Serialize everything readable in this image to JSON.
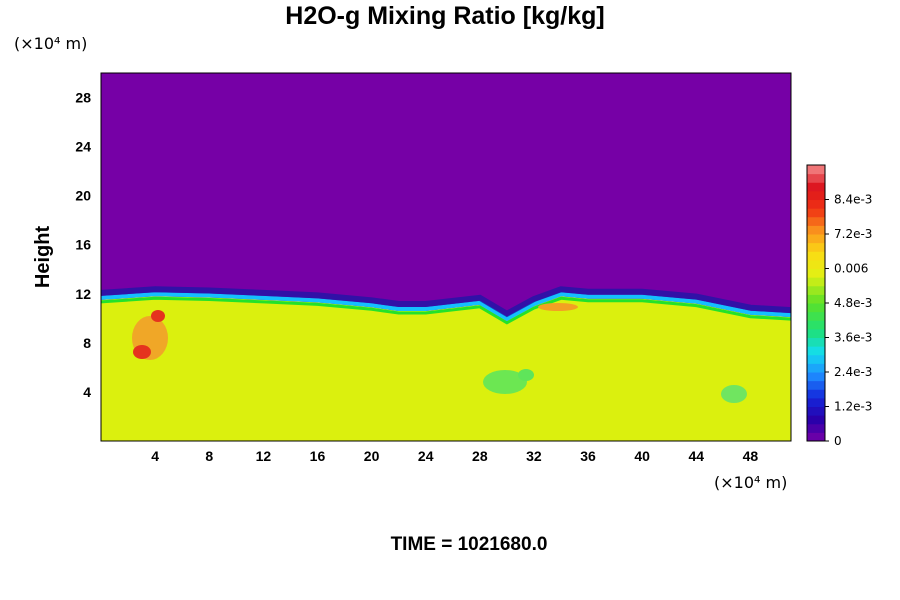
{
  "chart_data": {
    "type": "heatmap",
    "title": "H2O-g Mixing Ratio [kg/kg]",
    "ylabel": "Height",
    "x_unit": "(×10⁴ m)",
    "y_unit": "(×10⁴ m)",
    "xlim": [
      0,
      51
    ],
    "ylim": [
      0,
      30
    ],
    "x_ticks": [
      4,
      8,
      12,
      16,
      20,
      24,
      28,
      32,
      36,
      40,
      44,
      48
    ],
    "y_ticks": [
      4,
      8,
      12,
      16,
      20,
      24,
      28
    ],
    "colorbar": {
      "min": 0,
      "max": 0.0096,
      "tick_values": [
        0,
        0.0012,
        0.0024,
        0.0036,
        0.0048,
        0.006,
        0.0072,
        0.0084
      ],
      "tick_labels": [
        "0",
        "1.2e-3",
        "2.4e-3",
        "3.6e-3",
        "4.8e-3",
        "0.006",
        "7.2e-3",
        "8.4e-3"
      ]
    },
    "moist_layer_top_height": [
      {
        "x": 0,
        "y": 11.5
      },
      {
        "x": 4,
        "y": 11.8
      },
      {
        "x": 8,
        "y": 11.7
      },
      {
        "x": 12,
        "y": 11.5
      },
      {
        "x": 16,
        "y": 11.3
      },
      {
        "x": 20,
        "y": 10.9
      },
      {
        "x": 22,
        "y": 10.6
      },
      {
        "x": 24,
        "y": 10.6
      },
      {
        "x": 28,
        "y": 11.1
      },
      {
        "x": 30,
        "y": 9.8
      },
      {
        "x": 32,
        "y": 11.0
      },
      {
        "x": 34,
        "y": 11.8
      },
      {
        "x": 36,
        "y": 11.6
      },
      {
        "x": 40,
        "y": 11.6
      },
      {
        "x": 44,
        "y": 11.2
      },
      {
        "x": 48,
        "y": 10.3
      },
      {
        "x": 51,
        "y": 10.1
      }
    ],
    "lower_layer_value": 0.0066,
    "upper_layer_value": 0
  },
  "footer": {
    "time_label": "TIME = 1021680.0"
  }
}
